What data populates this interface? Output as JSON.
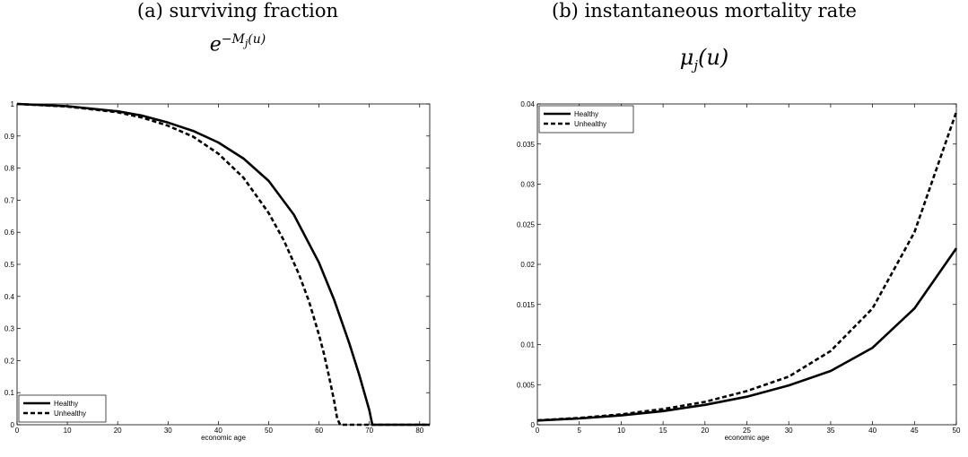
{
  "panels": [
    {
      "title": "(a) surviving fraction",
      "formula_base": "e",
      "formula_exp": "−M",
      "formula_sub": "j",
      "formula_arg": "(u)"
    },
    {
      "title": "(b) instantaneous mortality rate",
      "formula_base": "μ",
      "formula_sub": "j",
      "formula_arg": "(u)"
    }
  ],
  "chart_data": [
    {
      "type": "line",
      "title": "(a) surviving fraction",
      "xlabel": "economic age",
      "ylabel": "",
      "xlim": [
        0,
        82
      ],
      "ylim": [
        0,
        1
      ],
      "xticks": [
        0,
        10,
        20,
        30,
        40,
        50,
        60,
        70,
        80
      ],
      "yticks": [
        0,
        0.1,
        0.2,
        0.3,
        0.4,
        0.5,
        0.6,
        0.7,
        0.8,
        0.9,
        1
      ],
      "legend_position": "bottom-left",
      "series": [
        {
          "name": "Healthy",
          "style": "solid",
          "x": [
            0,
            10,
            20,
            25,
            30,
            35,
            40,
            45,
            50,
            55,
            60,
            63,
            66,
            68,
            69,
            70,
            70.6,
            75,
            82
          ],
          "y": [
            1.0,
            0.993,
            0.977,
            0.963,
            0.942,
            0.916,
            0.88,
            0.83,
            0.76,
            0.655,
            0.505,
            0.39,
            0.255,
            0.155,
            0.1,
            0.045,
            0.0,
            0.0,
            0.0
          ]
        },
        {
          "name": "Unhealthy",
          "style": "dashed",
          "x": [
            0,
            10,
            20,
            25,
            30,
            35,
            40,
            45,
            50,
            53,
            56,
            58,
            60,
            61,
            62,
            63,
            63.6,
            64.2,
            70,
            82
          ],
          "y": [
            1.0,
            0.992,
            0.974,
            0.957,
            0.932,
            0.898,
            0.845,
            0.77,
            0.66,
            0.575,
            0.47,
            0.385,
            0.28,
            0.22,
            0.15,
            0.075,
            0.02,
            0.0,
            0.0,
            0.0
          ]
        }
      ]
    },
    {
      "type": "line",
      "title": "(b) instantaneous mortality rate",
      "xlabel": "economic age",
      "ylabel": "",
      "xlim": [
        0,
        50
      ],
      "ylim": [
        0,
        0.04
      ],
      "xticks": [
        0,
        5,
        10,
        15,
        20,
        25,
        30,
        35,
        40,
        45,
        50
      ],
      "yticks": [
        0,
        0.005,
        0.01,
        0.015,
        0.02,
        0.025,
        0.03,
        0.035,
        0.04
      ],
      "legend_position": "top-left",
      "series": [
        {
          "name": "Healthy",
          "style": "solid",
          "x": [
            0,
            5,
            10,
            15,
            20,
            25,
            30,
            35,
            40,
            45,
            50
          ],
          "y": [
            0.00052,
            0.00078,
            0.00116,
            0.0017,
            0.00248,
            0.0035,
            0.0049,
            0.0067,
            0.0096,
            0.0145,
            0.022
          ]
        },
        {
          "name": "Unhealthy",
          "style": "dashed",
          "x": [
            0,
            5,
            10,
            15,
            20,
            25,
            30,
            35,
            40,
            45,
            50
          ],
          "y": [
            0.00055,
            0.00085,
            0.0013,
            0.00195,
            0.00285,
            0.0042,
            0.006,
            0.0092,
            0.0145,
            0.024,
            0.039
          ]
        }
      ]
    }
  ]
}
